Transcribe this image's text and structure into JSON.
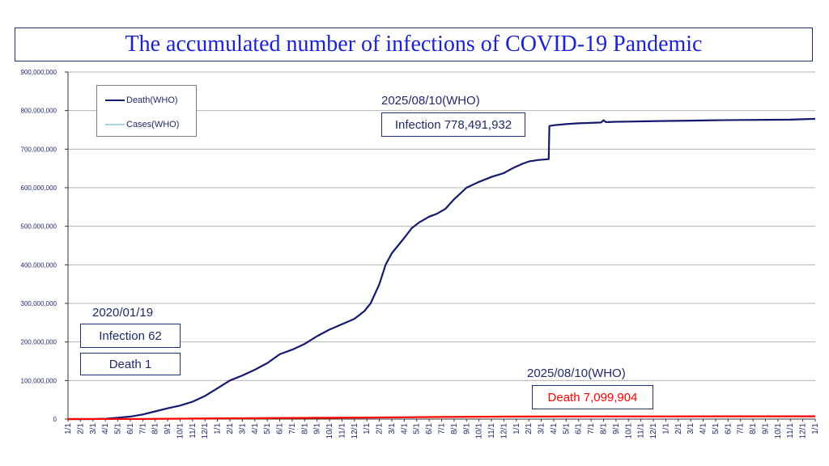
{
  "chart_data": {
    "type": "line",
    "title": "The accumulated number of infections of COVID-19 Pandemic",
    "xlabel": "",
    "ylabel": "",
    "ylim": [
      0,
      900000000
    ],
    "y_ticks": [
      "0",
      "100,000,000",
      "200,000,000",
      "300,000,000",
      "400,000,000",
      "500,000,000",
      "600,000,000",
      "700,000,000",
      "800,000,000",
      "900,000,000"
    ],
    "y_tick_values": [
      0,
      100000000,
      200000000,
      300000000,
      400000000,
      500000000,
      600000000,
      700000000,
      800000000,
      900000000
    ],
    "x_labels": [
      "1/1",
      "2/1",
      "3/1",
      "4/1",
      "5/1",
      "6/1",
      "7/1",
      "8/1",
      "9/1",
      "10/1",
      "11/1",
      "12/1",
      "1/1",
      "2/1",
      "3/1",
      "4/1",
      "5/1",
      "6/1",
      "7/1",
      "8/1",
      "9/1",
      "10/1",
      "11/1",
      "12/1",
      "1/1",
      "2/1",
      "3/1",
      "4/1",
      "5/1",
      "6/1",
      "7/1",
      "8/1",
      "9/1",
      "10/1",
      "11/1",
      "12/1",
      "1/1",
      "2/1",
      "3/1",
      "4/1",
      "5/1",
      "6/1",
      "7/1",
      "8/1",
      "9/1",
      "10/1",
      "11/1",
      "12/1",
      "1/1",
      "2/1",
      "3/1",
      "4/1",
      "5/1",
      "6/1",
      "7/1",
      "8/1",
      "9/1",
      "10/1",
      "11/1",
      "12/1",
      "1/1"
    ],
    "grid": true,
    "legend_position": "top-left",
    "legend": [
      "Death(WHO)",
      "Cases(WHO)"
    ],
    "series": [
      {
        "name": "Infection",
        "color": "#141a6e",
        "points": [
          [
            0,
            0
          ],
          [
            1,
            0
          ],
          [
            2,
            100000
          ],
          [
            3,
            900000
          ],
          [
            4,
            3500000
          ],
          [
            5,
            6500000
          ],
          [
            6,
            12000000
          ],
          [
            7,
            20000000
          ],
          [
            8,
            28000000
          ],
          [
            9,
            35000000
          ],
          [
            10,
            45000000
          ],
          [
            11,
            60000000
          ],
          [
            12,
            80000000
          ],
          [
            13,
            100000000
          ],
          [
            14,
            113000000
          ],
          [
            15,
            128000000
          ],
          [
            16,
            145000000
          ],
          [
            17,
            168000000
          ],
          [
            18,
            180000000
          ],
          [
            19,
            195000000
          ],
          [
            20,
            215000000
          ],
          [
            21,
            232000000
          ],
          [
            22,
            246000000
          ],
          [
            23,
            260000000
          ],
          [
            23.8,
            280000000
          ],
          [
            24.3,
            300000000
          ],
          [
            25,
            350000000
          ],
          [
            25.5,
            400000000
          ],
          [
            26,
            430000000
          ],
          [
            27,
            470000000
          ],
          [
            27.6,
            495000000
          ],
          [
            28.2,
            510000000
          ],
          [
            29,
            525000000
          ],
          [
            29.6,
            532000000
          ],
          [
            30.3,
            545000000
          ],
          [
            31,
            570000000
          ],
          [
            32,
            600000000
          ],
          [
            33,
            615000000
          ],
          [
            34,
            628000000
          ],
          [
            35,
            638000000
          ],
          [
            35.8,
            652000000
          ],
          [
            36.5,
            662000000
          ],
          [
            37,
            668000000
          ],
          [
            37.8,
            672000000
          ],
          [
            38.6,
            674000000
          ],
          [
            38.65,
            760000000
          ],
          [
            39,
            762000000
          ],
          [
            40,
            765000000
          ],
          [
            41,
            767000000
          ],
          [
            42,
            768000000
          ],
          [
            42.8,
            769000000
          ],
          [
            43,
            775000000
          ],
          [
            43.2,
            770000000
          ],
          [
            44,
            771000000
          ],
          [
            45,
            771500000
          ],
          [
            46,
            772000000
          ],
          [
            48,
            773000000
          ],
          [
            50,
            774000000
          ],
          [
            52,
            775000000
          ],
          [
            54,
            775500000
          ],
          [
            56,
            776000000
          ],
          [
            58,
            776500000
          ],
          [
            59,
            777500000
          ],
          [
            60,
            778491932
          ]
        ]
      },
      {
        "name": "Death",
        "color": "#ff0000",
        "points": [
          [
            0,
            0
          ],
          [
            6,
            300000
          ],
          [
            12,
            1800000
          ],
          [
            18,
            3000000
          ],
          [
            24,
            4000000
          ],
          [
            30,
            5500000
          ],
          [
            36,
            6600000
          ],
          [
            42,
            6900000
          ],
          [
            48,
            7000000
          ],
          [
            54,
            7050000
          ],
          [
            60,
            7099904
          ]
        ]
      }
    ],
    "annotations": {
      "start_date": "2020/01/19",
      "start_infection": "Infection 62",
      "start_death": "Death 1",
      "end_infection_date": "2025/08/10(WHO)",
      "end_infection": "Infection 778,491,932",
      "end_death_date": "2025/08/10(WHO)",
      "end_death": "Death  7,099,904"
    },
    "colors": {
      "title": "#1a22d6",
      "infection_line": "#141a6e",
      "death_line": "#ff0000",
      "legend_cases": "#a8d4e6",
      "death_text": "#ff0000"
    }
  }
}
